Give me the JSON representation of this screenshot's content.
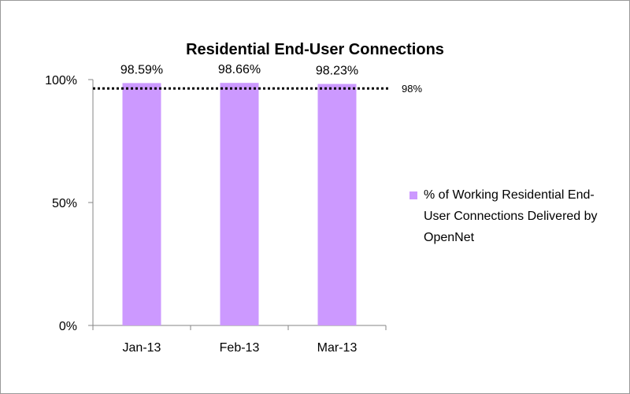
{
  "colors": {
    "bar_fill": "#cc99ff",
    "axis": "#868686",
    "reference_line": "#000000"
  },
  "chart_data": {
    "type": "bar",
    "title": "Residential End-User Connections",
    "categories": [
      "Jan-13",
      "Feb-13",
      "Mar-13"
    ],
    "series": [
      {
        "name": "% of Working Residential End-User Connections Delivered by OpenNet",
        "values": [
          98.59,
          98.66,
          98.23
        ],
        "data_labels": [
          "98.59%",
          "98.66%",
          "98.23%"
        ]
      }
    ],
    "ylim": [
      0,
      100
    ],
    "yticks": [
      0,
      50,
      100
    ],
    "ytick_labels": [
      "0%",
      "50%",
      "100%"
    ],
    "reference_line": {
      "value": 98,
      "label": "98%",
      "style": "dotted"
    },
    "legend_position": "right",
    "grid": false
  }
}
